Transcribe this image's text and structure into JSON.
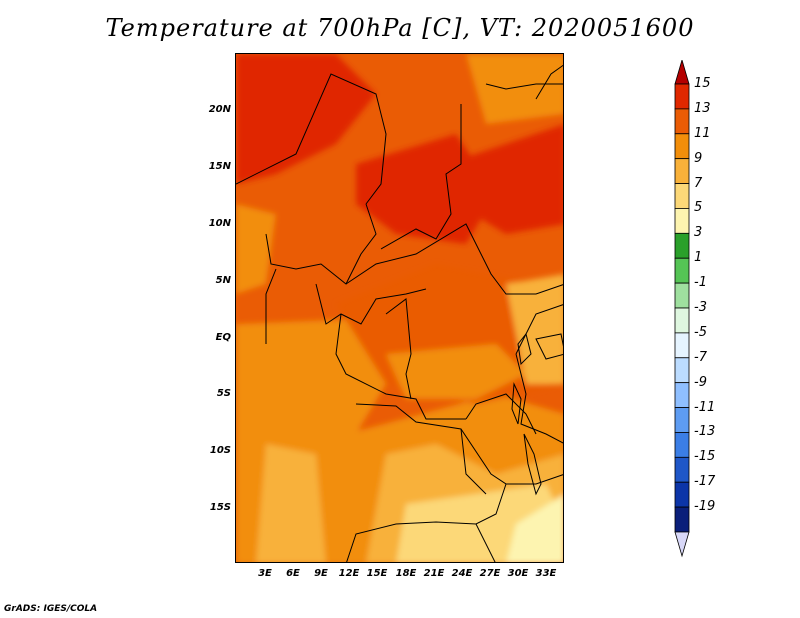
{
  "title": "Temperature at 700hPa [C], VT: 2020051600",
  "credit": "GrADS: IGES/COLA",
  "map": {
    "region": "Central Africa",
    "lat_labels": [
      "20N",
      "15N",
      "10N",
      "5N",
      "EQ",
      "5S",
      "10S",
      "15S"
    ],
    "lon_labels": [
      "3E",
      "6E",
      "9E",
      "12E",
      "15E",
      "18E",
      "21E",
      "24E",
      "27E",
      "30E",
      "33E"
    ]
  },
  "colorbar": {
    "labels": [
      "15",
      "13",
      "11",
      "9",
      "7",
      "5",
      "3",
      "1",
      "-1",
      "-3",
      "-5",
      "-7",
      "-9",
      "-11",
      "-13",
      "-15",
      "-17",
      "-19"
    ],
    "colors": [
      "#b40000",
      "#e02800",
      "#ea5c05",
      "#f28e0a",
      "#f8b13a",
      "#fcd878",
      "#fdf4b0",
      "#2aa02a",
      "#55c455",
      "#9fe09f",
      "#dff7e0",
      "#e6f4ff",
      "#bcdcff",
      "#8fbfff",
      "#5e9cf2",
      "#3b7ee6",
      "#1f57c8",
      "#0c35a8",
      "#0a1f7a",
      "#d8d8f8"
    ]
  }
}
